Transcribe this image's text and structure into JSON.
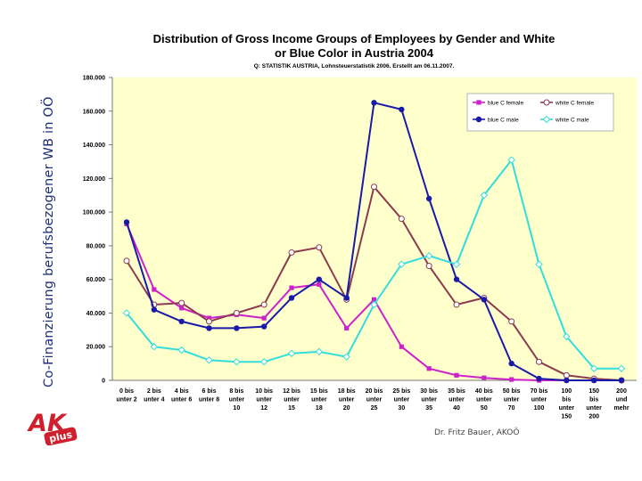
{
  "side_title": "Co-Finanzierung berufsbezogener WB in OÖ",
  "footer": "Dr. Fritz Bauer, AKOÖ",
  "logo": {
    "letters": "AK",
    "badge": "plus",
    "color": "#d0202e"
  },
  "chart_data": {
    "type": "line",
    "title_line1": "Distribution of Gross Income Groups of Employees by Gender and White",
    "title_line2": "or Blue Color in Austria 2004",
    "subtitle": "Q: STATISTIK AUSTRIA, Lohnsteuerstatistik 2006. Erstellt am 06.11.2007.",
    "ylim": [
      0,
      180000
    ],
    "ytick_values": [
      0,
      20000,
      40000,
      60000,
      80000,
      100000,
      120000,
      140000,
      160000,
      180000
    ],
    "ytick_labels": [
      "0",
      "20.000",
      "40.000",
      "60.000",
      "80.000",
      "100.000",
      "120.000",
      "140.000",
      "160.000",
      "180.000"
    ],
    "categories": [
      [
        "0 bis",
        "unter 2"
      ],
      [
        "2 bis",
        "unter 4"
      ],
      [
        "4 bis",
        "unter 6"
      ],
      [
        "6 bis",
        "unter 8"
      ],
      [
        "8 bis",
        "unter",
        "10"
      ],
      [
        "10 bis",
        "unter",
        "12"
      ],
      [
        "12 bis",
        "unter",
        "15"
      ],
      [
        "15 bis",
        "unter",
        "18"
      ],
      [
        "18 bis",
        "unter",
        "20"
      ],
      [
        "20 bis",
        "unter",
        "25"
      ],
      [
        "25 bis",
        "unter",
        "30"
      ],
      [
        "30 bis",
        "unter",
        "35"
      ],
      [
        "35 bis",
        "unter",
        "40"
      ],
      [
        "40 bis",
        "unter",
        "50"
      ],
      [
        "50 bis",
        "unter",
        "70"
      ],
      [
        "70 bis",
        "unter",
        "100"
      ],
      [
        "100",
        "bis",
        "unter",
        "150"
      ],
      [
        "150",
        "bis",
        "unter",
        "200"
      ],
      [
        "200",
        "und",
        "mehr"
      ]
    ],
    "grid": false,
    "legend_position": "top-right",
    "plot_bg": "#ffffcc",
    "series": [
      {
        "name": "blue C female",
        "color": "#cc22cc",
        "marker": "square",
        "values": [
          93000,
          54000,
          43000,
          37000,
          39000,
          37000,
          55000,
          57000,
          31000,
          48000,
          20000,
          7000,
          3000,
          1500,
          500,
          0,
          0,
          0,
          0
        ]
      },
      {
        "name": "white C female",
        "color": "#8b3a52",
        "marker": "circle-open",
        "values": [
          71000,
          45000,
          46000,
          35000,
          40000,
          45000,
          76000,
          79000,
          48000,
          115000,
          96000,
          68000,
          45000,
          49000,
          35000,
          11000,
          3000,
          1000,
          0
        ]
      },
      {
        "name": "blue C male",
        "color": "#1a1aa8",
        "marker": "circle",
        "values": [
          94000,
          42000,
          35000,
          31000,
          31000,
          32000,
          49000,
          60000,
          49000,
          165000,
          161000,
          108000,
          60000,
          48000,
          10000,
          1000,
          0,
          0,
          0
        ]
      },
      {
        "name": "white C male",
        "color": "#33dddd",
        "marker": "diamond-open",
        "values": [
          40000,
          20000,
          18000,
          12000,
          11000,
          11000,
          16000,
          17000,
          14000,
          45000,
          69000,
          74000,
          69000,
          110000,
          131000,
          69000,
          26000,
          7000,
          7000
        ]
      }
    ],
    "legend_labels": [
      "blue C female",
      "white C female",
      "blue C male",
      "white C male"
    ]
  }
}
